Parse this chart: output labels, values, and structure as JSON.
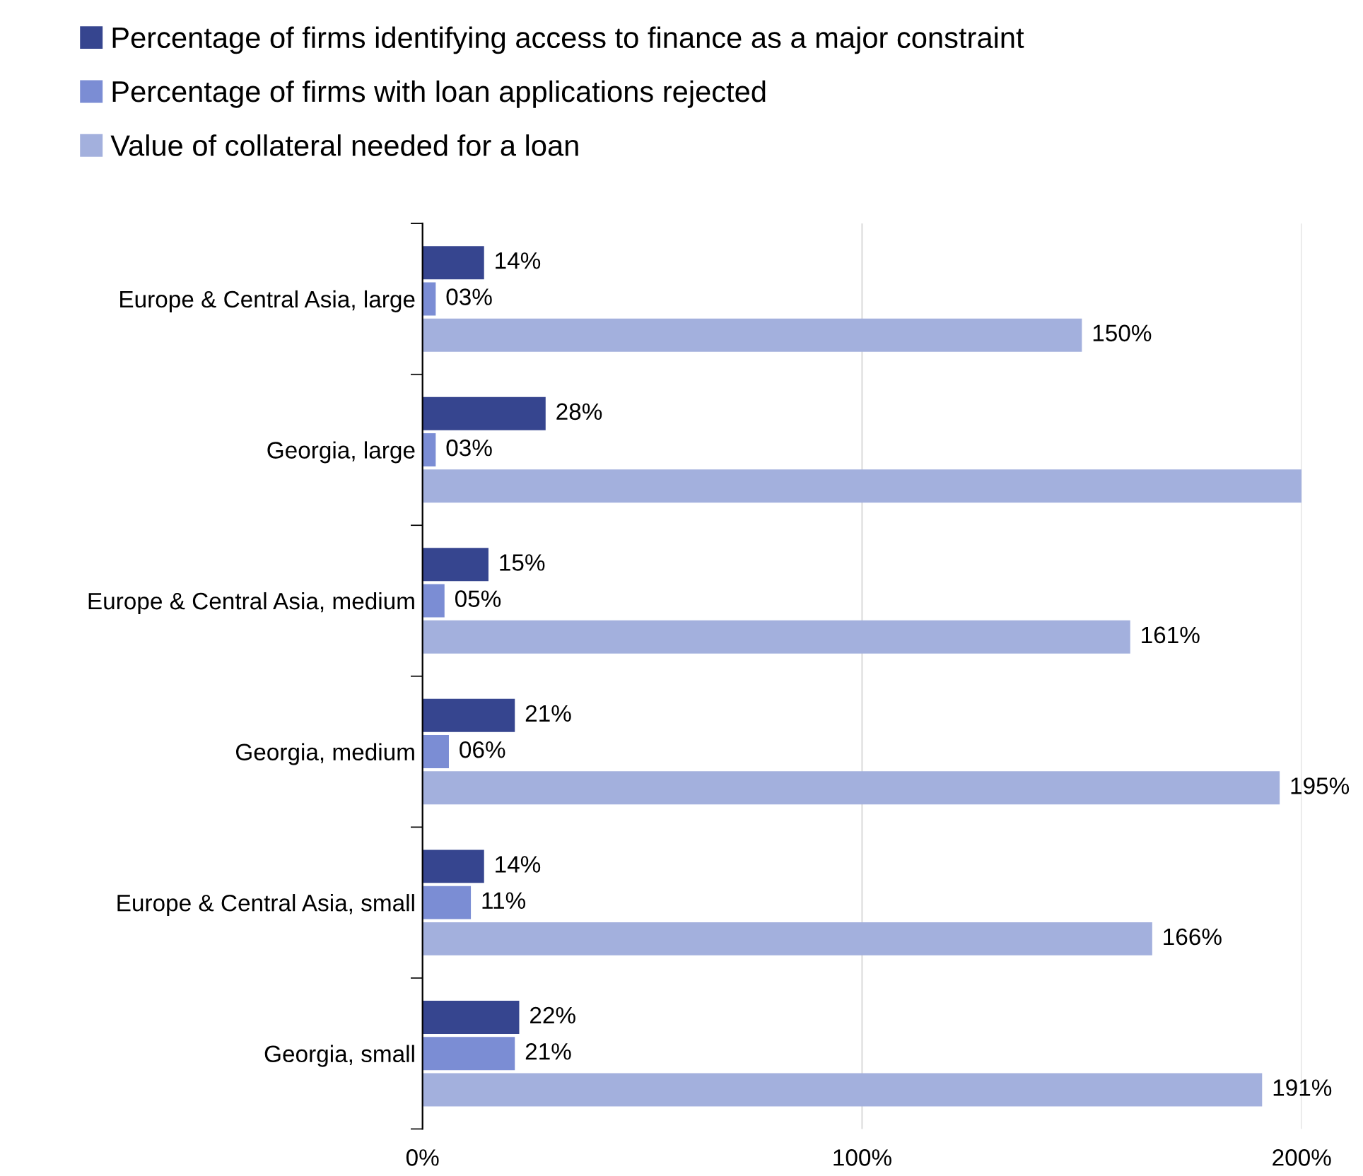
{
  "chart_data": {
    "type": "bar",
    "orientation": "horizontal",
    "categories": [
      "Europe & Central Asia, large",
      "Georgia, large",
      "Europe & Central Asia, medium",
      "Georgia, medium",
      "Europe & Central Asia, small",
      "Georgia, small"
    ],
    "series": [
      {
        "name": "Percentage of firms identifying access to finance as a major constraint",
        "color": "#36458f",
        "values": [
          14,
          28,
          15,
          21,
          14,
          22
        ],
        "value_labels": [
          "14%",
          "28%",
          "15%",
          "21%",
          "14%",
          "22%"
        ]
      },
      {
        "name": "Percentage of firms with loan applications rejected",
        "color": "#7b8dd4",
        "values": [
          3,
          3,
          5,
          6,
          11,
          21
        ],
        "value_labels": [
          "03%",
          "03%",
          "05%",
          "06%",
          "11%",
          "21%"
        ]
      },
      {
        "name": "Value of collateral needed for a loan",
        "color": "#a3b0dd",
        "values": [
          150,
          200,
          161,
          195,
          166,
          191
        ],
        "value_labels": [
          "150%",
          null,
          "161%",
          "195%",
          "166%",
          "191%"
        ]
      }
    ],
    "xlim": [
      0,
      200
    ],
    "xticks": [
      {
        "value": 0,
        "label": "0%"
      },
      {
        "value": 100,
        "label": "100%"
      },
      {
        "value": 200,
        "label": "200%"
      }
    ],
    "grid": "x",
    "legend": "top left"
  }
}
